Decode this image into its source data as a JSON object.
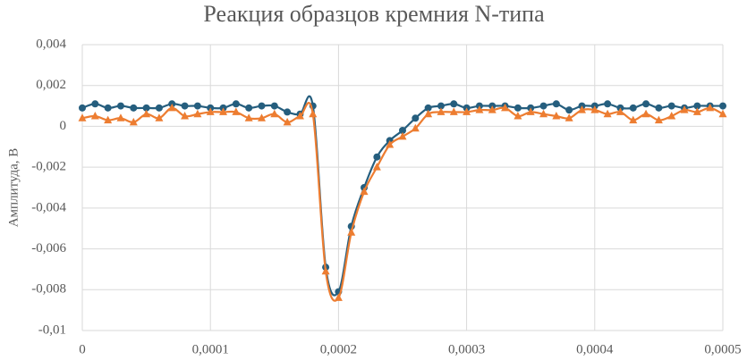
{
  "chart_data": {
    "type": "line",
    "title": "Реакция образцов кремния N-типа",
    "y_label": "Амплитуда, В",
    "x": [
      0,
      1e-05,
      2e-05,
      3e-05,
      4e-05,
      5e-05,
      6e-05,
      7e-05,
      8e-05,
      9e-05,
      0.0001,
      0.00011,
      0.00012,
      0.00013,
      0.00014,
      0.00015,
      0.00016,
      0.00017,
      0.00018,
      0.00019,
      0.0002,
      0.00021,
      0.00022,
      0.00023,
      0.00024,
      0.00025,
      0.00026,
      0.00027,
      0.00028,
      0.00029,
      0.0003,
      0.00031,
      0.00032,
      0.00033,
      0.00034,
      0.00035,
      0.00036,
      0.00037,
      0.00038,
      0.00039,
      0.0004,
      0.00041,
      0.00042,
      0.00043,
      0.00044,
      0.00045,
      0.00046,
      0.00047,
      0.00048,
      0.00049,
      0.0005
    ],
    "series": [
      {
        "color": "#255e7e",
        "marker": "circle",
        "values": [
          0.0009,
          0.0011,
          0.0009,
          0.001,
          0.0009,
          0.0009,
          0.0009,
          0.0011,
          0.001,
          0.001,
          0.0009,
          0.0009,
          0.0011,
          0.0009,
          0.001,
          0.001,
          0.0007,
          0.0006,
          0.001,
          -0.0069,
          -0.0081,
          -0.0049,
          -0.003,
          -0.0015,
          -0.0007,
          -0.0002,
          0.0004,
          0.0009,
          0.001,
          0.0011,
          0.0009,
          0.001,
          0.001,
          0.001,
          0.0009,
          0.0009,
          0.001,
          0.0011,
          0.0008,
          0.001,
          0.001,
          0.0011,
          0.0009,
          0.0009,
          0.0011,
          0.0009,
          0.001,
          0.0009,
          0.001,
          0.001,
          0.001
        ]
      },
      {
        "color": "#ed7d31",
        "marker": "triangle",
        "values": [
          0.0004,
          0.0005,
          0.0003,
          0.0004,
          0.0002,
          0.0006,
          0.0004,
          0.0009,
          0.0005,
          0.0006,
          0.0007,
          0.0007,
          0.0007,
          0.0004,
          0.0004,
          0.0006,
          0.0002,
          0.0005,
          0.0006,
          -0.0071,
          -0.0084,
          -0.0052,
          -0.0032,
          -0.002,
          -0.0009,
          -0.0005,
          -0.0001,
          0.0006,
          0.0007,
          0.0007,
          0.0007,
          0.0008,
          0.0008,
          0.0009,
          0.0005,
          0.0007,
          0.0006,
          0.0005,
          0.0004,
          0.0008,
          0.0008,
          0.0006,
          0.0007,
          0.0003,
          0.0006,
          0.0003,
          0.0005,
          0.0008,
          0.0007,
          0.0009,
          0.0006
        ]
      }
    ],
    "xlim": [
      0,
      0.0005
    ],
    "xticks": [
      0,
      {
        "value": 0.0001,
        "label": "0,0001"
      },
      {
        "value": 0.0002,
        "label": "0,0002"
      },
      {
        "value": 0.0003,
        "label": "0,0003"
      },
      {
        "value": 0.0004,
        "label": "0,0004"
      },
      {
        "value": 0.0005,
        "label": "0,0005"
      }
    ],
    "ylim": [
      -0.01,
      0.004
    ],
    "yticks": [
      {
        "value": 0.004,
        "label": "0,004"
      },
      {
        "value": 0.002,
        "label": "0,002"
      },
      0,
      {
        "value": -0.002,
        "label": "-0,002"
      },
      {
        "value": -0.004,
        "label": "-0,004"
      },
      {
        "value": -0.006,
        "label": "-0,006"
      },
      {
        "value": -0.008,
        "label": "-0,008"
      },
      {
        "value": -0.01,
        "label": "-0,01"
      }
    ],
    "grid": true
  }
}
